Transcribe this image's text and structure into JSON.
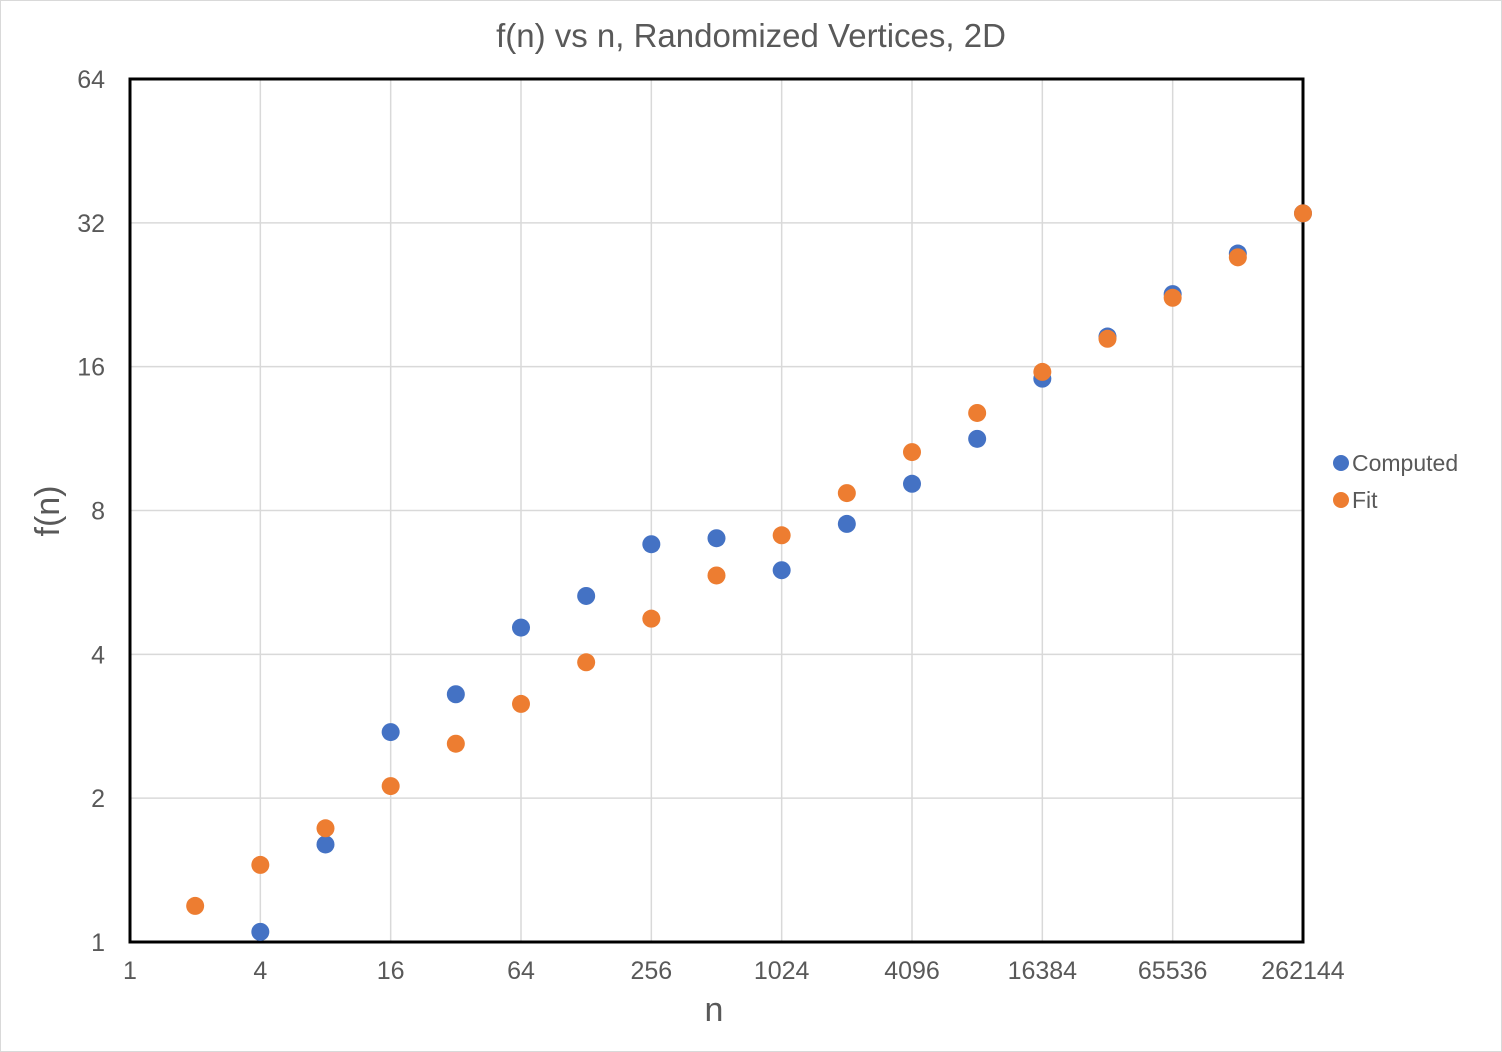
{
  "chart_data": {
    "type": "scatter",
    "title": "f(n) vs n, Randomized Vertices, 2D",
    "xlabel": "n",
    "ylabel": "f(n)",
    "x_scale": "log2",
    "y_scale": "log2",
    "xlim": [
      1,
      262144
    ],
    "ylim": [
      1,
      64
    ],
    "x_ticks": [
      "1",
      "4",
      "16",
      "64",
      "256",
      "1024",
      "4096",
      "16384",
      "65536",
      "262144"
    ],
    "y_ticks": [
      "1",
      "2",
      "4",
      "8",
      "16",
      "32",
      "64"
    ],
    "grid": true,
    "legend_position": "right",
    "series": [
      {
        "name": "Computed",
        "color": "#4472C4",
        "points": [
          {
            "x": 4,
            "y": 1.05
          },
          {
            "x": 8,
            "y": 1.6
          },
          {
            "x": 16,
            "y": 2.75
          },
          {
            "x": 32,
            "y": 3.3
          },
          {
            "x": 64,
            "y": 4.55
          },
          {
            "x": 128,
            "y": 5.3
          },
          {
            "x": 256,
            "y": 6.8
          },
          {
            "x": 512,
            "y": 7.0
          },
          {
            "x": 1024,
            "y": 6.0
          },
          {
            "x": 2048,
            "y": 7.5
          },
          {
            "x": 4096,
            "y": 9.1
          },
          {
            "x": 8192,
            "y": 11.3
          },
          {
            "x": 16384,
            "y": 15.1
          },
          {
            "x": 32768,
            "y": 18.5
          },
          {
            "x": 65536,
            "y": 22.7
          },
          {
            "x": 131072,
            "y": 27.6
          },
          {
            "x": 262144,
            "y": 33.5
          }
        ]
      },
      {
        "name": "Fit",
        "color": "#ED7D31",
        "points": [
          {
            "x": 2,
            "y": 1.19
          },
          {
            "x": 4,
            "y": 1.45
          },
          {
            "x": 8,
            "y": 1.73
          },
          {
            "x": 16,
            "y": 2.12
          },
          {
            "x": 32,
            "y": 2.6
          },
          {
            "x": 64,
            "y": 3.15
          },
          {
            "x": 128,
            "y": 3.85
          },
          {
            "x": 256,
            "y": 4.75
          },
          {
            "x": 512,
            "y": 5.85
          },
          {
            "x": 1024,
            "y": 7.1
          },
          {
            "x": 2048,
            "y": 8.7
          },
          {
            "x": 4096,
            "y": 10.6
          },
          {
            "x": 8192,
            "y": 12.8
          },
          {
            "x": 16384,
            "y": 15.6
          },
          {
            "x": 32768,
            "y": 18.3
          },
          {
            "x": 65536,
            "y": 22.3
          },
          {
            "x": 131072,
            "y": 27.1
          },
          {
            "x": 262144,
            "y": 33.5
          }
        ]
      }
    ]
  }
}
